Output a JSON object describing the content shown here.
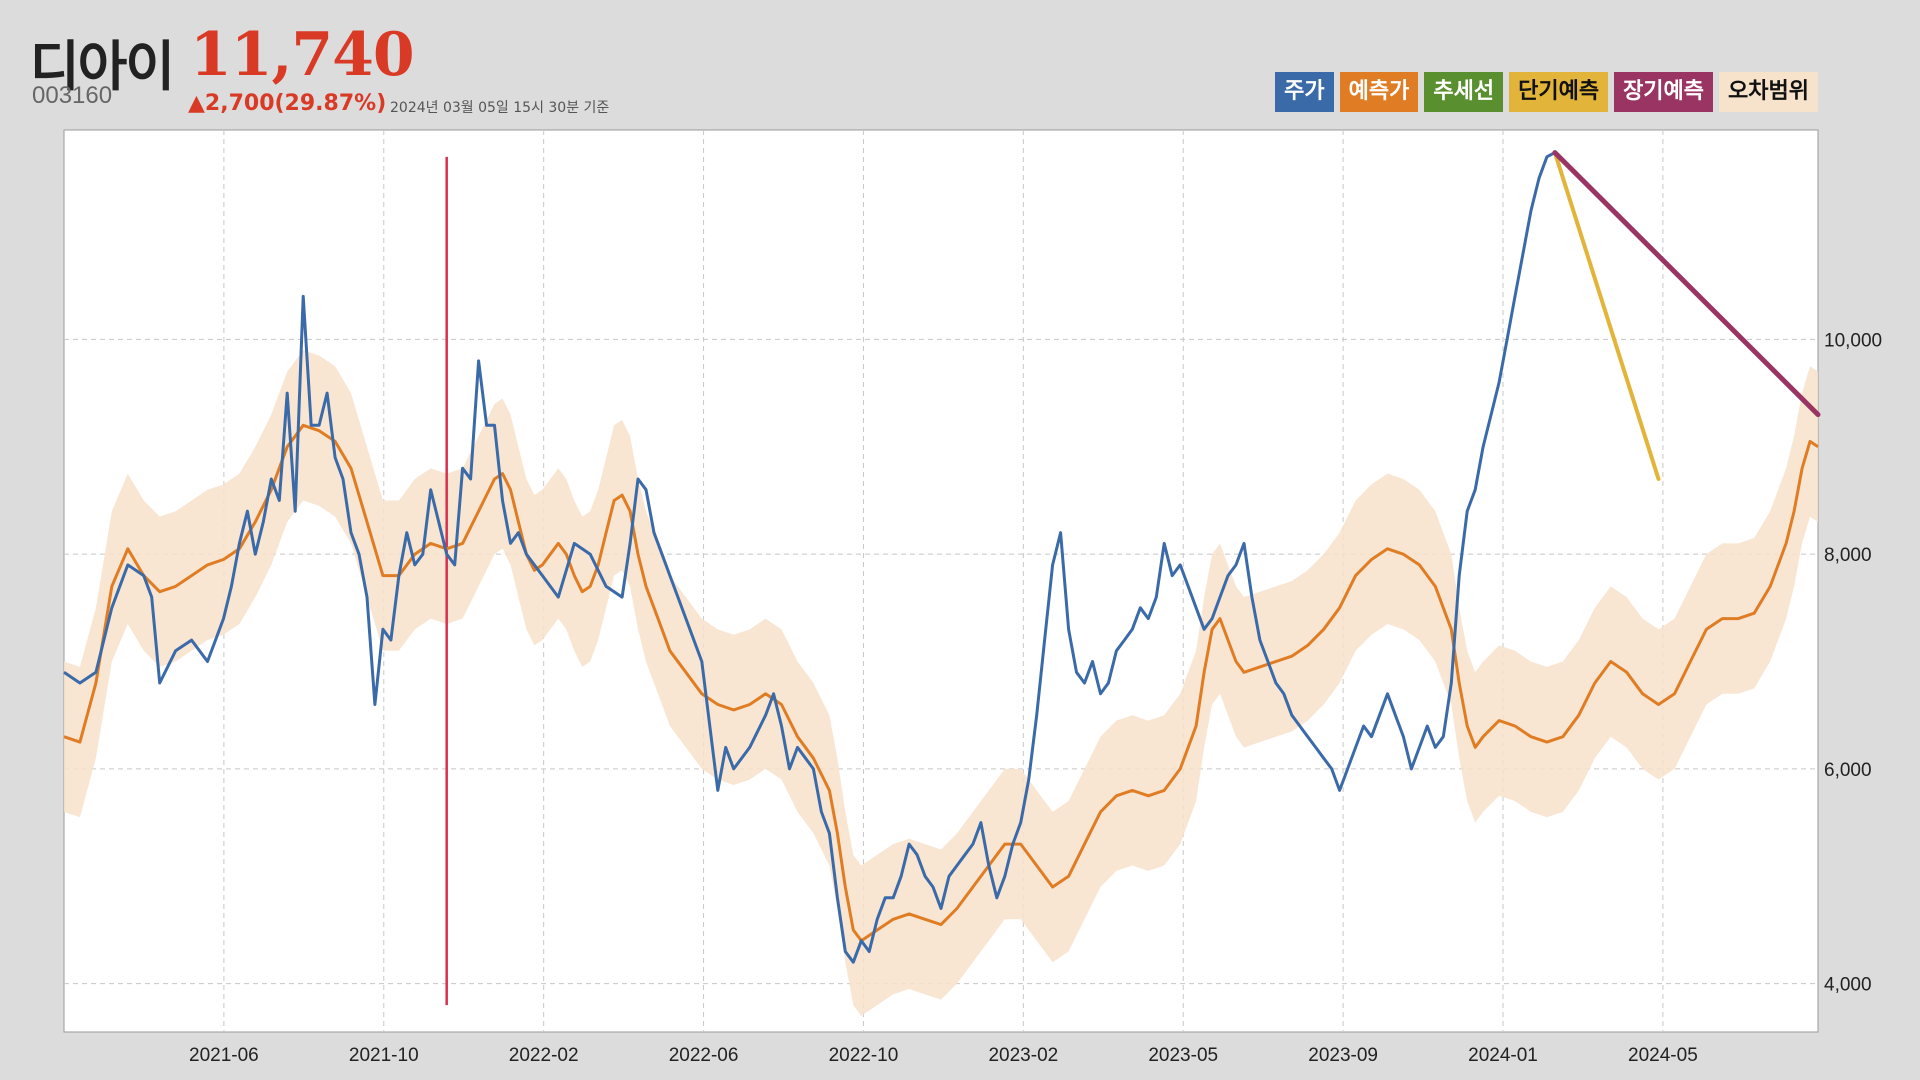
{
  "header": {
    "stock_name": "디아이",
    "price": "11,740",
    "code": "003160",
    "change": "▲2,700(29.87%)",
    "as_of": "2024년 03월 05일 15시 30분 기준"
  },
  "legend": [
    {
      "label": "주가",
      "bg": "#3b6aa9",
      "fg": "#ffffff"
    },
    {
      "label": "예측가",
      "bg": "#e07d24",
      "fg": "#ffffff"
    },
    {
      "label": "추세선",
      "bg": "#5a8f2f",
      "fg": "#ffffff"
    },
    {
      "label": "단기예측",
      "bg": "#e3b43a",
      "fg": "#111111"
    },
    {
      "label": "장기예측",
      "bg": "#9a3462",
      "fg": "#ffffff"
    },
    {
      "label": "오차범위",
      "bg": "#f7e2cb",
      "fg": "#111111"
    }
  ],
  "colors": {
    "price": "#3b6aa9",
    "predicted": "#e07d24",
    "band": "#f7e2cb",
    "short_term": "#e3b43a",
    "long_term": "#9a3462",
    "marker": "#d9304f"
  },
  "chart_data": {
    "type": "line",
    "x_ticks": [
      "2021-06",
      "2021-10",
      "2022-02",
      "2022-06",
      "2022-10",
      "2023-02",
      "2023-05",
      "2023-09",
      "2024-01",
      "2024-05"
    ],
    "y_ticks": [
      "4,000",
      "6,000",
      "8,000",
      "10,000"
    ],
    "ylim": [
      3550,
      11950
    ],
    "xlim": [
      0,
      1100
    ],
    "marker_x": 240,
    "series": [
      {
        "name": "주가",
        "points": [
          [
            0,
            6900
          ],
          [
            10,
            6800
          ],
          [
            20,
            6900
          ],
          [
            30,
            7500
          ],
          [
            40,
            7900
          ],
          [
            50,
            7800
          ],
          [
            55,
            7600
          ],
          [
            60,
            6800
          ],
          [
            70,
            7100
          ],
          [
            80,
            7200
          ],
          [
            90,
            7000
          ],
          [
            95,
            7200
          ],
          [
            100,
            7400
          ],
          [
            105,
            7700
          ],
          [
            110,
            8100
          ],
          [
            115,
            8400
          ],
          [
            120,
            8000
          ],
          [
            125,
            8300
          ],
          [
            130,
            8700
          ],
          [
            135,
            8500
          ],
          [
            140,
            9500
          ],
          [
            145,
            8400
          ],
          [
            150,
            10400
          ],
          [
            155,
            9200
          ],
          [
            160,
            9200
          ],
          [
            165,
            9500
          ],
          [
            170,
            8900
          ],
          [
            175,
            8700
          ],
          [
            180,
            8200
          ],
          [
            185,
            8000
          ],
          [
            190,
            7600
          ],
          [
            195,
            6600
          ],
          [
            200,
            7300
          ],
          [
            205,
            7200
          ],
          [
            210,
            7800
          ],
          [
            215,
            8200
          ],
          [
            220,
            7900
          ],
          [
            225,
            8000
          ],
          [
            230,
            8600
          ],
          [
            235,
            8300
          ],
          [
            240,
            8000
          ],
          [
            245,
            7900
          ],
          [
            250,
            8800
          ],
          [
            255,
            8700
          ],
          [
            260,
            9800
          ],
          [
            265,
            9200
          ],
          [
            270,
            9200
          ],
          [
            275,
            8500
          ],
          [
            280,
            8100
          ],
          [
            285,
            8200
          ],
          [
            290,
            8000
          ],
          [
            300,
            7800
          ],
          [
            310,
            7600
          ],
          [
            320,
            8100
          ],
          [
            330,
            8000
          ],
          [
            340,
            7700
          ],
          [
            350,
            7600
          ],
          [
            355,
            8100
          ],
          [
            360,
            8700
          ],
          [
            365,
            8600
          ],
          [
            370,
            8200
          ],
          [
            375,
            8000
          ],
          [
            380,
            7800
          ],
          [
            385,
            7600
          ],
          [
            390,
            7400
          ],
          [
            400,
            7000
          ],
          [
            405,
            6400
          ],
          [
            410,
            5800
          ],
          [
            415,
            6200
          ],
          [
            420,
            6000
          ],
          [
            430,
            6200
          ],
          [
            440,
            6500
          ],
          [
            445,
            6700
          ],
          [
            450,
            6400
          ],
          [
            455,
            6000
          ],
          [
            460,
            6200
          ],
          [
            465,
            6100
          ],
          [
            470,
            6000
          ],
          [
            475,
            5600
          ],
          [
            480,
            5400
          ],
          [
            485,
            4800
          ],
          [
            490,
            4300
          ],
          [
            495,
            4200
          ],
          [
            500,
            4400
          ],
          [
            505,
            4300
          ],
          [
            510,
            4600
          ],
          [
            515,
            4800
          ],
          [
            520,
            4800
          ],
          [
            525,
            5000
          ],
          [
            530,
            5300
          ],
          [
            535,
            5200
          ],
          [
            540,
            5000
          ],
          [
            545,
            4900
          ],
          [
            550,
            4700
          ],
          [
            555,
            5000
          ],
          [
            560,
            5100
          ],
          [
            565,
            5200
          ],
          [
            570,
            5300
          ],
          [
            575,
            5500
          ],
          [
            580,
            5100
          ],
          [
            585,
            4800
          ],
          [
            590,
            5000
          ],
          [
            595,
            5300
          ],
          [
            600,
            5500
          ],
          [
            605,
            5900
          ],
          [
            610,
            6500
          ],
          [
            615,
            7200
          ],
          [
            620,
            7900
          ],
          [
            625,
            8200
          ],
          [
            630,
            7300
          ],
          [
            635,
            6900
          ],
          [
            640,
            6800
          ],
          [
            645,
            7000
          ],
          [
            650,
            6700
          ],
          [
            655,
            6800
          ],
          [
            660,
            7100
          ],
          [
            665,
            7200
          ],
          [
            670,
            7300
          ],
          [
            675,
            7500
          ],
          [
            680,
            7400
          ],
          [
            685,
            7600
          ],
          [
            690,
            8100
          ],
          [
            695,
            7800
          ],
          [
            700,
            7900
          ],
          [
            705,
            7700
          ],
          [
            710,
            7500
          ],
          [
            715,
            7300
          ],
          [
            720,
            7400
          ],
          [
            725,
            7600
          ],
          [
            730,
            7800
          ],
          [
            735,
            7900
          ],
          [
            740,
            8100
          ],
          [
            745,
            7600
          ],
          [
            750,
            7200
          ],
          [
            755,
            7000
          ],
          [
            760,
            6800
          ],
          [
            765,
            6700
          ],
          [
            770,
            6500
          ],
          [
            775,
            6400
          ],
          [
            780,
            6300
          ],
          [
            785,
            6200
          ],
          [
            790,
            6100
          ],
          [
            795,
            6000
          ],
          [
            800,
            5800
          ],
          [
            805,
            6000
          ],
          [
            810,
            6200
          ],
          [
            815,
            6400
          ],
          [
            820,
            6300
          ],
          [
            825,
            6500
          ],
          [
            830,
            6700
          ],
          [
            835,
            6500
          ],
          [
            840,
            6300
          ],
          [
            845,
            6000
          ],
          [
            850,
            6200
          ],
          [
            855,
            6400
          ],
          [
            860,
            6200
          ],
          [
            865,
            6300
          ],
          [
            870,
            6800
          ],
          [
            875,
            7800
          ],
          [
            880,
            8400
          ],
          [
            885,
            8600
          ],
          [
            890,
            9000
          ],
          [
            895,
            9300
          ],
          [
            900,
            9600
          ],
          [
            905,
            10000
          ],
          [
            910,
            10400
          ],
          [
            915,
            10800
          ],
          [
            920,
            11200
          ],
          [
            925,
            11500
          ],
          [
            930,
            11700
          ],
          [
            935,
            11740
          ]
        ]
      },
      {
        "name": "예측가",
        "points": [
          [
            0,
            6300
          ],
          [
            10,
            6250
          ],
          [
            20,
            6800
          ],
          [
            30,
            7700
          ],
          [
            40,
            8050
          ],
          [
            50,
            7800
          ],
          [
            60,
            7650
          ],
          [
            70,
            7700
          ],
          [
            80,
            7800
          ],
          [
            90,
            7900
          ],
          [
            100,
            7950
          ],
          [
            110,
            8050
          ],
          [
            120,
            8300
          ],
          [
            130,
            8600
          ],
          [
            140,
            9000
          ],
          [
            150,
            9200
          ],
          [
            160,
            9150
          ],
          [
            170,
            9050
          ],
          [
            180,
            8800
          ],
          [
            190,
            8300
          ],
          [
            200,
            7800
          ],
          [
            210,
            7800
          ],
          [
            220,
            8000
          ],
          [
            230,
            8100
          ],
          [
            240,
            8050
          ],
          [
            250,
            8100
          ],
          [
            260,
            8400
          ],
          [
            270,
            8700
          ],
          [
            275,
            8750
          ],
          [
            280,
            8600
          ],
          [
            285,
            8300
          ],
          [
            290,
            8000
          ],
          [
            295,
            7850
          ],
          [
            300,
            7900
          ],
          [
            305,
            8000
          ],
          [
            310,
            8100
          ],
          [
            315,
            8000
          ],
          [
            320,
            7800
          ],
          [
            325,
            7650
          ],
          [
            330,
            7700
          ],
          [
            335,
            7900
          ],
          [
            340,
            8200
          ],
          [
            345,
            8500
          ],
          [
            350,
            8550
          ],
          [
            355,
            8400
          ],
          [
            360,
            8000
          ],
          [
            365,
            7700
          ],
          [
            370,
            7500
          ],
          [
            375,
            7300
          ],
          [
            380,
            7100
          ],
          [
            390,
            6900
          ],
          [
            400,
            6700
          ],
          [
            410,
            6600
          ],
          [
            420,
            6550
          ],
          [
            430,
            6600
          ],
          [
            440,
            6700
          ],
          [
            450,
            6600
          ],
          [
            460,
            6300
          ],
          [
            470,
            6100
          ],
          [
            480,
            5800
          ],
          [
            485,
            5400
          ],
          [
            490,
            4900
          ],
          [
            495,
            4500
          ],
          [
            500,
            4400
          ],
          [
            510,
            4500
          ],
          [
            520,
            4600
          ],
          [
            530,
            4650
          ],
          [
            540,
            4600
          ],
          [
            550,
            4550
          ],
          [
            560,
            4700
          ],
          [
            570,
            4900
          ],
          [
            580,
            5100
          ],
          [
            590,
            5300
          ],
          [
            600,
            5300
          ],
          [
            610,
            5100
          ],
          [
            620,
            4900
          ],
          [
            630,
            5000
          ],
          [
            640,
            5300
          ],
          [
            650,
            5600
          ],
          [
            660,
            5750
          ],
          [
            670,
            5800
          ],
          [
            680,
            5750
          ],
          [
            690,
            5800
          ],
          [
            700,
            6000
          ],
          [
            710,
            6400
          ],
          [
            715,
            6900
          ],
          [
            720,
            7300
          ],
          [
            725,
            7400
          ],
          [
            730,
            7200
          ],
          [
            735,
            7000
          ],
          [
            740,
            6900
          ],
          [
            750,
            6950
          ],
          [
            760,
            7000
          ],
          [
            770,
            7050
          ],
          [
            780,
            7150
          ],
          [
            790,
            7300
          ],
          [
            800,
            7500
          ],
          [
            810,
            7800
          ],
          [
            820,
            7950
          ],
          [
            830,
            8050
          ],
          [
            840,
            8000
          ],
          [
            850,
            7900
          ],
          [
            860,
            7700
          ],
          [
            870,
            7300
          ],
          [
            875,
            6800
          ],
          [
            880,
            6400
          ],
          [
            885,
            6200
          ],
          [
            890,
            6300
          ],
          [
            900,
            6450
          ],
          [
            910,
            6400
          ],
          [
            920,
            6300
          ],
          [
            930,
            6250
          ],
          [
            940,
            6300
          ],
          [
            950,
            6500
          ],
          [
            960,
            6800
          ],
          [
            970,
            7000
          ],
          [
            980,
            6900
          ],
          [
            990,
            6700
          ],
          [
            1000,
            6600
          ],
          [
            1010,
            6700
          ],
          [
            1020,
            7000
          ],
          [
            1030,
            7300
          ],
          [
            1040,
            7400
          ],
          [
            1050,
            7400
          ],
          [
            1060,
            7450
          ],
          [
            1070,
            7700
          ],
          [
            1080,
            8100
          ],
          [
            1085,
            8400
          ],
          [
            1090,
            8800
          ],
          [
            1095,
            9050
          ],
          [
            1100,
            9000
          ]
        ]
      },
      {
        "name": "단기예측",
        "points": [
          [
            935,
            11740
          ],
          [
            1000,
            8700
          ]
        ]
      },
      {
        "name": "장기예측",
        "points": [
          [
            935,
            11740
          ],
          [
            1100,
            9300
          ]
        ]
      }
    ],
    "band_width": 700
  }
}
